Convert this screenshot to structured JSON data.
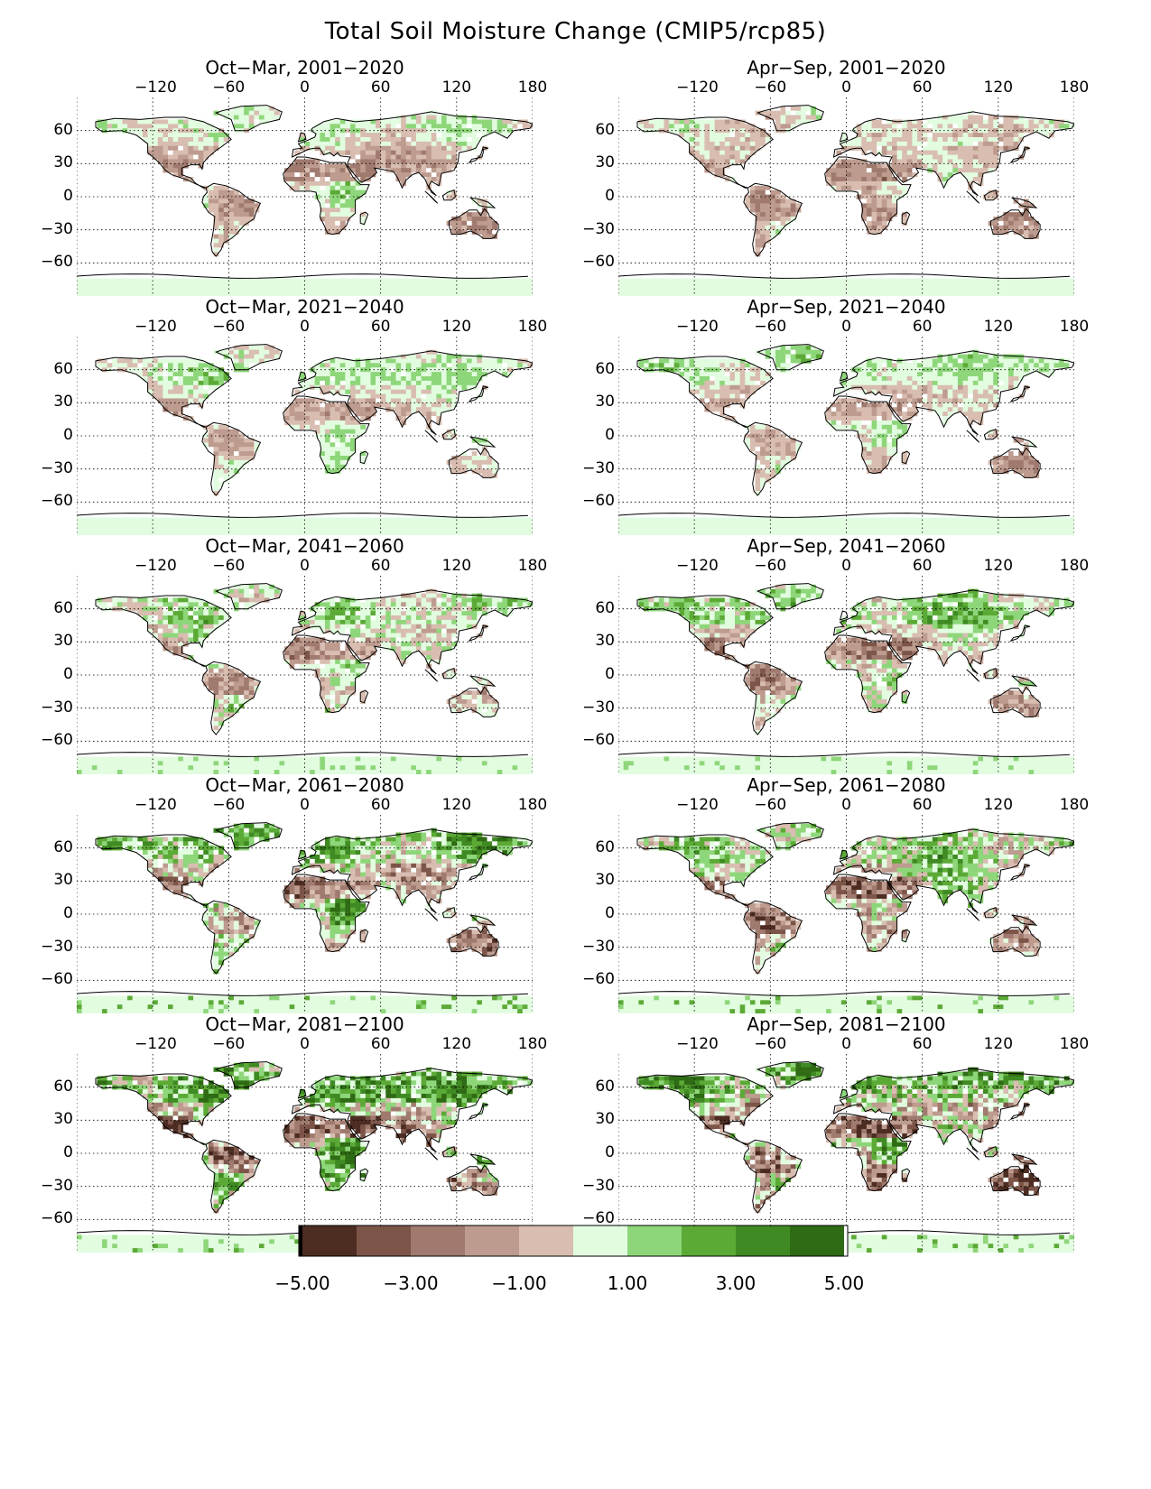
{
  "title": "Total Soil Moisture Change (CMIP5/rcp85)",
  "lon_ticks": [
    "−120",
    "−60",
    "0",
    "60",
    "120",
    "180"
  ],
  "lat_ticks": [
    "60",
    "30",
    "0",
    "−30",
    "−60"
  ],
  "panels": [
    {
      "title": "Oct−Mar, 2001−2020",
      "season": "Oct-Mar",
      "period": "2001-2020",
      "intensity": 0.15
    },
    {
      "title": "Apr−Sep, 2001−2020",
      "season": "Apr-Sep",
      "period": "2001-2020",
      "intensity": 0.15
    },
    {
      "title": "Oct−Mar, 2021−2040",
      "season": "Oct-Mar",
      "period": "2021-2040",
      "intensity": 0.35
    },
    {
      "title": "Apr−Sep, 2021−2040",
      "season": "Apr-Sep",
      "period": "2021-2040",
      "intensity": 0.35
    },
    {
      "title": "Oct−Mar, 2041−2060",
      "season": "Oct-Mar",
      "period": "2041-2060",
      "intensity": 0.55
    },
    {
      "title": "Apr−Sep, 2041−2060",
      "season": "Apr-Sep",
      "period": "2041-2060",
      "intensity": 0.55
    },
    {
      "title": "Oct−Mar, 2061−2080",
      "season": "Oct-Mar",
      "period": "2061-2080",
      "intensity": 0.75
    },
    {
      "title": "Apr−Sep, 2061−2080",
      "season": "Apr-Sep",
      "period": "2061-2080",
      "intensity": 0.75
    },
    {
      "title": "Oct−Mar, 2081−2100",
      "season": "Oct-Mar",
      "period": "2081-2100",
      "intensity": 0.95
    },
    {
      "title": "Apr−Sep, 2081−2100",
      "season": "Apr-Sep",
      "period": "2081-2100",
      "intensity": 0.95
    }
  ],
  "colorbar": {
    "min": -5.0,
    "max": 5.0,
    "labels": [
      "−5.00",
      "−3.00",
      "−1.00",
      "1.00",
      "3.00",
      "5.00"
    ],
    "label_values": [
      -5,
      -3,
      -1,
      1,
      3,
      5
    ],
    "colors": [
      "#4d2c22",
      "#7c5548",
      "#a07a6e",
      "#bd9b8e",
      "#d8bdb0",
      "#e2fce0",
      "#8ed67a",
      "#5caa36",
      "#3f8a23",
      "#2f6b14"
    ],
    "end_low": "#000000",
    "end_high": "#ffffff"
  },
  "chart_data": {
    "type": "heatmap",
    "title": "Total Soil Moisture Change (CMIP5/rcp85)",
    "x_axis": {
      "range": [
        -180,
        180
      ],
      "ticks": [
        -120,
        -60,
        0,
        60,
        120,
        180
      ]
    },
    "y_axis": {
      "range": [
        -90,
        90
      ],
      "ticks": [
        60,
        30,
        0,
        -30,
        -60
      ]
    },
    "value_range": [
      -5,
      5
    ],
    "panel_layout": "5 rows x 2 columns",
    "grid": true
  }
}
